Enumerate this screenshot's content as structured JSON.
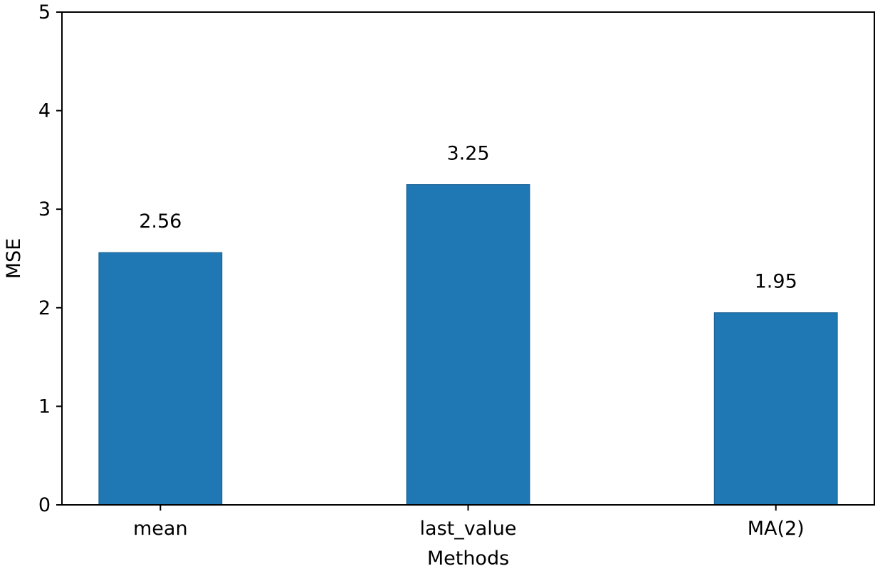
{
  "chart_data": {
    "type": "bar",
    "title": "",
    "xlabel": "Methods",
    "ylabel": "MSE",
    "categories": [
      "mean",
      "last_value",
      "MA(2)"
    ],
    "values": [
      2.56,
      3.25,
      1.95
    ],
    "data_labels": [
      "2.56",
      "3.25",
      "1.95"
    ],
    "ylim": [
      0,
      5
    ],
    "yticks": [
      0,
      1,
      2,
      3,
      4,
      5
    ],
    "ytick_labels": [
      "0",
      "1",
      "2",
      "3",
      "4",
      "5"
    ],
    "grid": false,
    "legend": "none",
    "bar_color": "#1f77b4",
    "bar_edge_color": "#1a5f91"
  }
}
